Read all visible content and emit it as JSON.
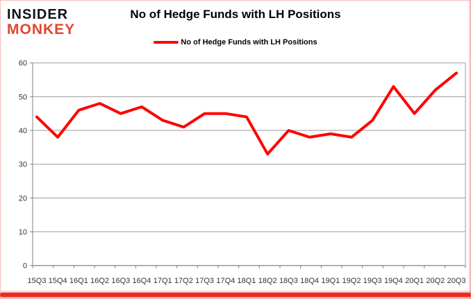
{
  "branding": {
    "logo_line1": "INSIDER",
    "logo_line2": "MONKEY",
    "logo_color_primary": "#111111",
    "logo_color_accent": "#e2462c"
  },
  "title": "No of Hedge Funds with LH Positions",
  "legend": {
    "label": "No of Hedge Funds with LH Positions",
    "line_color": "#ff0000"
  },
  "frame": {
    "bottom_bar_color": "#ee2a1e",
    "edge_color": "#f3b9b4"
  },
  "chart_data": {
    "type": "line",
    "title": "No of Hedge Funds with LH Positions",
    "categories": [
      "15Q3",
      "15Q4",
      "16Q1",
      "16Q2",
      "16Q3",
      "16Q4",
      "17Q1",
      "17Q2",
      "17Q3",
      "17Q4",
      "18Q1",
      "18Q2",
      "18Q3",
      "18Q4",
      "19Q1",
      "19Q2",
      "19Q3",
      "19Q4",
      "20Q1",
      "20Q2",
      "20Q3"
    ],
    "series": [
      {
        "name": "No of Hedge Funds with LH Positions",
        "color": "#ff0000",
        "values": [
          44,
          38,
          46,
          48,
          45,
          47,
          43,
          41,
          45,
          45,
          44,
          33,
          40,
          38,
          39,
          38,
          43,
          53,
          45,
          52,
          57
        ]
      }
    ],
    "ylim": [
      0,
      60
    ],
    "yticks": [
      0,
      10,
      20,
      30,
      40,
      50,
      60
    ],
    "grid": "horizontal",
    "gridline_color": "#9a9a9a",
    "axis_color": "#808080",
    "legend_position": "top"
  }
}
